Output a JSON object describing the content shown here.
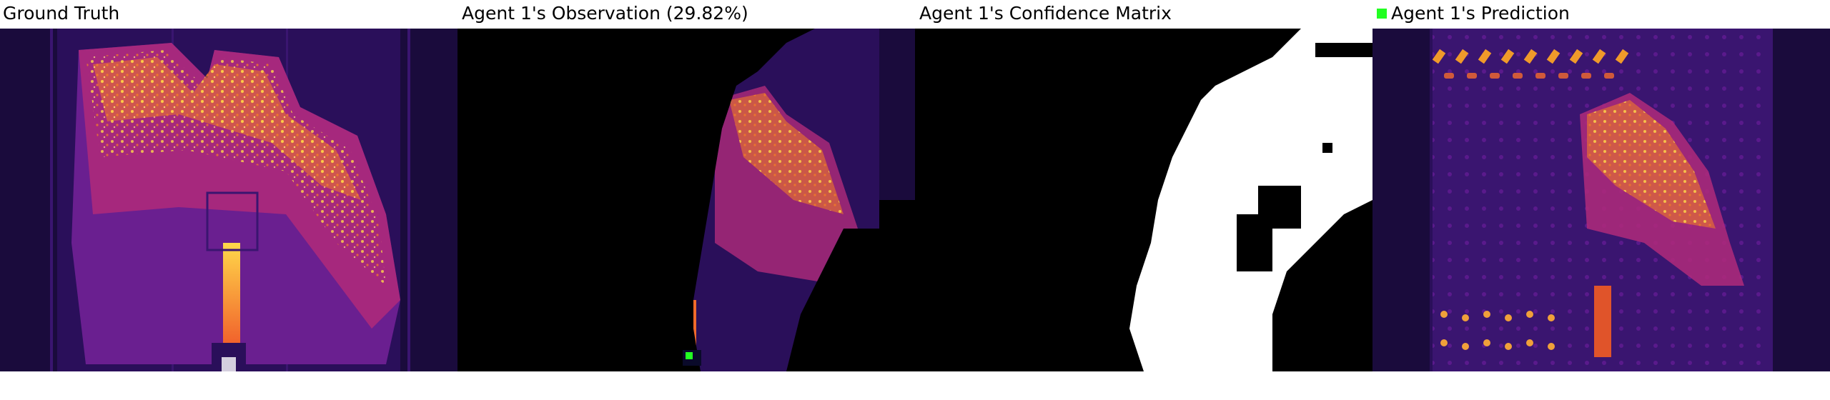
{
  "panels": [
    {
      "id": "ground-truth",
      "title": "Ground Truth"
    },
    {
      "id": "observation",
      "title": "Agent 1's Observation (29.82%)"
    },
    {
      "id": "confidence",
      "title": "Agent 1's Confidence Matrix"
    },
    {
      "id": "prediction",
      "title": "Agent 1's Prediction",
      "legend_color": "#22ff22"
    }
  ],
  "colors": {
    "background": "#ffffff",
    "heatmap_dark": "#1a0b3c",
    "heatmap_purple": "#5a1a8c",
    "heatmap_magenta": "#b02a7a",
    "heatmap_orange": "#f07a2a",
    "heatmap_yellow": "#ffd84a",
    "mask_black": "#000000",
    "mask_white": "#ffffff",
    "agent_marker": "#22ff22"
  }
}
